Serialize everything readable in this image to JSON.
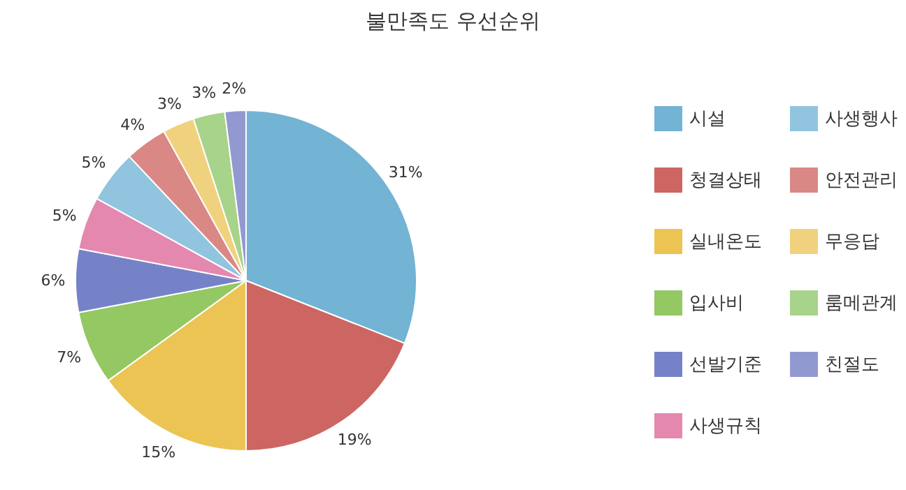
{
  "chart_data": {
    "type": "pie",
    "title": "불만족도 우선순위",
    "categories": [
      "시설",
      "청결상태",
      "실내온도",
      "입사비",
      "선발기준",
      "사생규칙",
      "사생행사",
      "안전관리",
      "무응답",
      "룸메관계",
      "친절도"
    ],
    "values": [
      31,
      19,
      15,
      7,
      6,
      5,
      5,
      4,
      3,
      3,
      2
    ],
    "value_labels": [
      "31%",
      "19%",
      "15%",
      "7%",
      "6%",
      "5%",
      "5%",
      "4%",
      "3%",
      "3%",
      "2%"
    ],
    "colors": [
      "#73b3d4",
      "#cd6562",
      "#ecc453",
      "#93c862",
      "#7682c8",
      "#e488b0",
      "#91c4de",
      "#d98886",
      "#f0d27e",
      "#a8d38a",
      "#9299d0"
    ],
    "legend": "right"
  }
}
